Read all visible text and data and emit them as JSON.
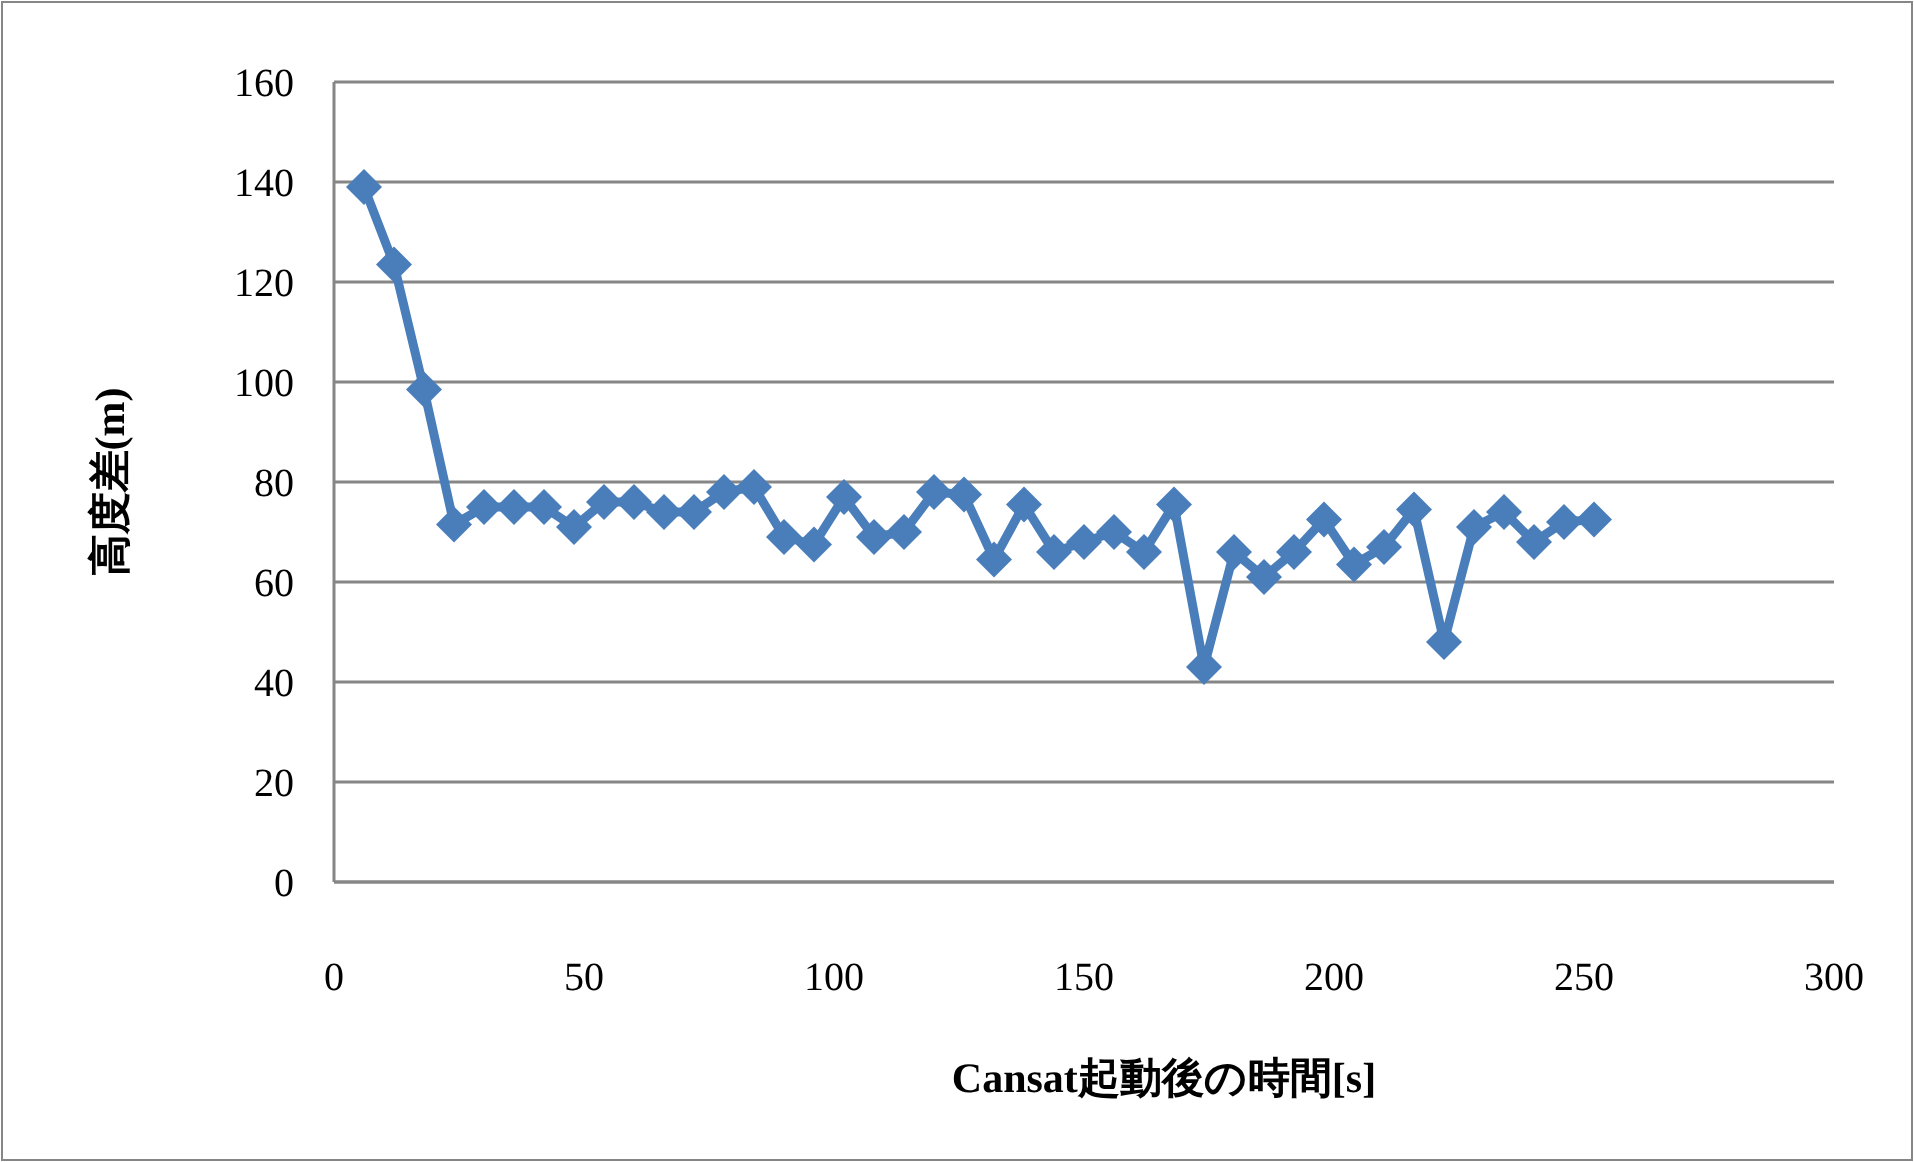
{
  "chart_data": {
    "type": "line",
    "xlabel": "Cansat起動後の時間[s]",
    "ylabel": "高度差(m)",
    "x": [
      6,
      12,
      18,
      24,
      30,
      36,
      42,
      48,
      54,
      60,
      66,
      72,
      78,
      84,
      90,
      96,
      102,
      108,
      114,
      120,
      126,
      132,
      138,
      144,
      150,
      156,
      162,
      168,
      174,
      180,
      186,
      192,
      198,
      204,
      210,
      216,
      222,
      228,
      234,
      240,
      246,
      252
    ],
    "series": [
      {
        "color": "#4a7ebb",
        "values": [
          139,
          123.5,
          98.5,
          71.5,
          75,
          75,
          75,
          71,
          76,
          76,
          74,
          74,
          78,
          79,
          69,
          67.5,
          77,
          69,
          70,
          78,
          77.5,
          64.5,
          75.5,
          66,
          68,
          70,
          66,
          75.5,
          43,
          66,
          61,
          66,
          72.5,
          63.5,
          67,
          74.5,
          48,
          71,
          74,
          68,
          72,
          72.5
        ]
      }
    ],
    "xlim": [
      0,
      300
    ],
    "xticks": [
      0,
      50,
      100,
      150,
      200,
      250,
      300
    ],
    "ylim": [
      0,
      160
    ],
    "yticks": [
      0,
      20,
      40,
      60,
      80,
      100,
      120,
      140,
      160
    ],
    "grid": "y",
    "marker": "diamond",
    "line_style": "solid"
  }
}
